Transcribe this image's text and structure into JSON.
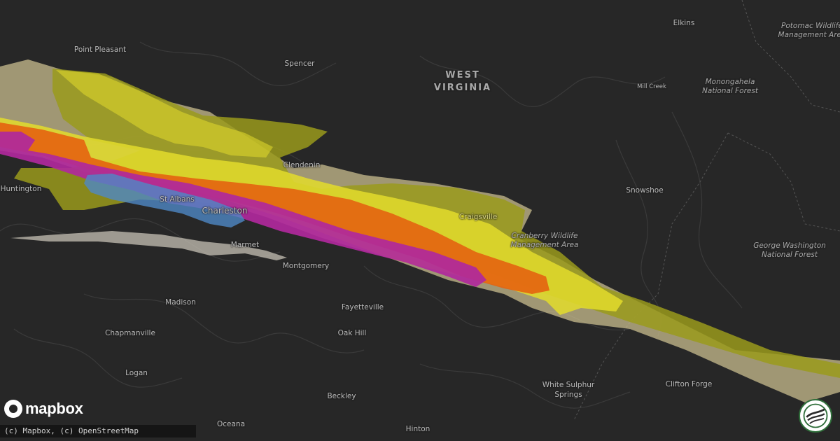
{
  "map": {
    "region_label": [
      "WEST",
      "VIRGINIA"
    ],
    "places": [
      {
        "id": "point-pleasant",
        "name": "Point Pleasant"
      },
      {
        "id": "spencer",
        "name": "Spencer"
      },
      {
        "id": "elkins",
        "name": "Elkins"
      },
      {
        "id": "clendenin",
        "name": "Clendenin"
      },
      {
        "id": "huntington",
        "name": "Huntington"
      },
      {
        "id": "st-albans",
        "name": "St Albans"
      },
      {
        "id": "charleston",
        "name": "Charleston"
      },
      {
        "id": "marmet",
        "name": "Marmet"
      },
      {
        "id": "montgomery",
        "name": "Montgomery"
      },
      {
        "id": "craigsville",
        "name": "Craigsville"
      },
      {
        "id": "snowshoe",
        "name": "Snowshoe"
      },
      {
        "id": "mill-creek",
        "name": "Mill Creek"
      },
      {
        "id": "madison",
        "name": "Madison"
      },
      {
        "id": "fayetteville",
        "name": "Fayetteville"
      },
      {
        "id": "chapmanville",
        "name": "Chapmanville"
      },
      {
        "id": "oak-hill",
        "name": "Oak Hill"
      },
      {
        "id": "logan",
        "name": "Logan"
      },
      {
        "id": "white-sulphur-springs",
        "name": "White Sulphur Springs"
      },
      {
        "id": "clifton-forge",
        "name": "Clifton Forge"
      },
      {
        "id": "beckley",
        "name": "Beckley"
      },
      {
        "id": "oceana",
        "name": "Oceana"
      },
      {
        "id": "hinton",
        "name": "Hinton"
      }
    ],
    "parks": [
      {
        "id": "potomac-wildlife",
        "line1": "Potomac Wildlife",
        "line2": "Management Area"
      },
      {
        "id": "monongahela",
        "line1": "Monongahela",
        "line2": "National Forest"
      },
      {
        "id": "cranberry",
        "line1": "Cranberry Wildlife",
        "line2": "Management Area"
      },
      {
        "id": "george-washington",
        "line1": "George Washington",
        "line2": "National Forest"
      }
    ],
    "swath_colors": {
      "tan": "#c9bd8f",
      "olive": "#9a9a1c",
      "yellow": "#e3dc2c",
      "orange": "#e4630f",
      "magenta": "#b0289c",
      "blue": "#4f88c6",
      "gray": "#bdb8ad"
    }
  },
  "footer": {
    "logo_text": "mapbox",
    "attribution": "(c) Mapbox, (c) OpenStreetMap"
  }
}
